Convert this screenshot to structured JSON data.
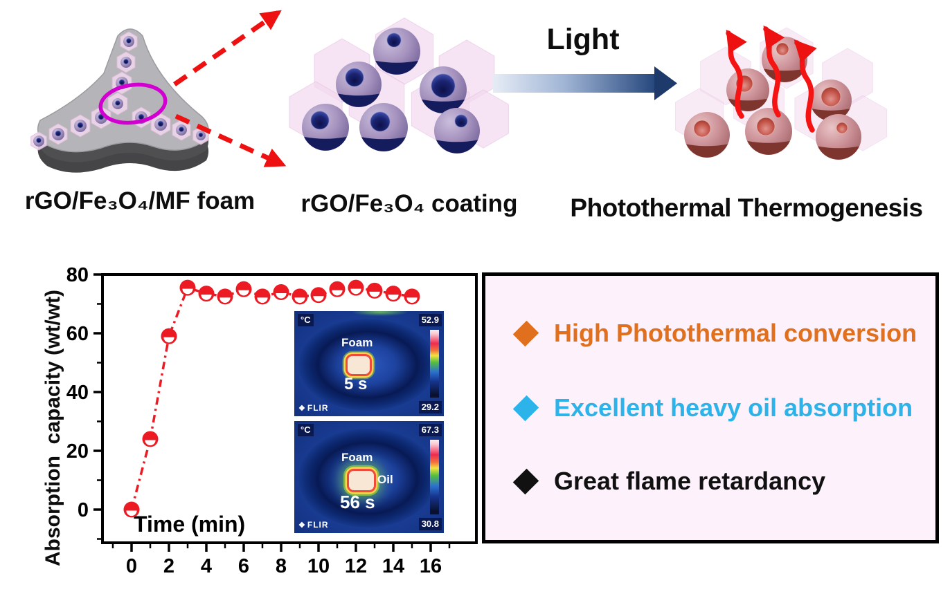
{
  "scheme": {
    "foam_label": "rGO/Fe₃O₄/MF foam",
    "coating_label": "rGO/Fe₃O₄ coating",
    "light_label": "Light",
    "thermogenesis_label": "Photothermal Thermogenesis"
  },
  "chart_data": {
    "type": "scatter",
    "series": [
      {
        "name": "absorption capacity",
        "x": [
          0,
          1,
          2,
          3,
          4,
          5,
          6,
          7,
          8,
          9,
          10,
          11,
          12,
          13,
          14,
          15
        ],
        "y": [
          0,
          24,
          59,
          75.5,
          73.5,
          72.5,
          75,
          72.5,
          74,
          72.5,
          73,
          75,
          75.5,
          74.5,
          73.5,
          72.5
        ]
      }
    ],
    "xlabel": "Time (min)",
    "ylabel": "Absorption  capacity (wt/wt)",
    "xticks": [
      0,
      2,
      4,
      6,
      8,
      10,
      12,
      14,
      16
    ],
    "yticks": [
      0,
      20,
      40,
      60,
      80
    ],
    "xlim": [
      -1.5,
      17
    ],
    "ylim": [
      -11,
      80
    ],
    "grid": false,
    "marker": "half-filled-circle",
    "marker_color": "#ec1b23",
    "line_style": "dash-dot"
  },
  "flir_insets": [
    {
      "unit": "°C",
      "temp_max": "52.9",
      "temp_min": "29.2",
      "foam_label": "Foam",
      "time_label": "5 s",
      "logo": "FLIR",
      "logo_icon": "❖"
    },
    {
      "unit": "°C",
      "temp_max": "67.3",
      "temp_min": "30.8",
      "foam_label": "Foam",
      "oil_label": "Oil",
      "time_label": "56 s",
      "logo": "FLIR",
      "logo_icon": "❖"
    }
  ],
  "highlights": {
    "background": "#fdf1fb",
    "border_color": "#000000",
    "items": [
      {
        "label": "High Photothermal conversion",
        "color": "#e0701e"
      },
      {
        "label": "Excellent heavy oil absorption",
        "color": "#2bb3ea"
      },
      {
        "label": "Great flame retardancy",
        "color": "#111111"
      }
    ]
  },
  "colors": {
    "zoom_ellipse": "#d100d1",
    "zoom_arrow": "#ee1111",
    "heat_arrow": "#f41414",
    "light_arrow_start": "#e6ecf6",
    "light_arrow_end": "#1d3a6b"
  }
}
